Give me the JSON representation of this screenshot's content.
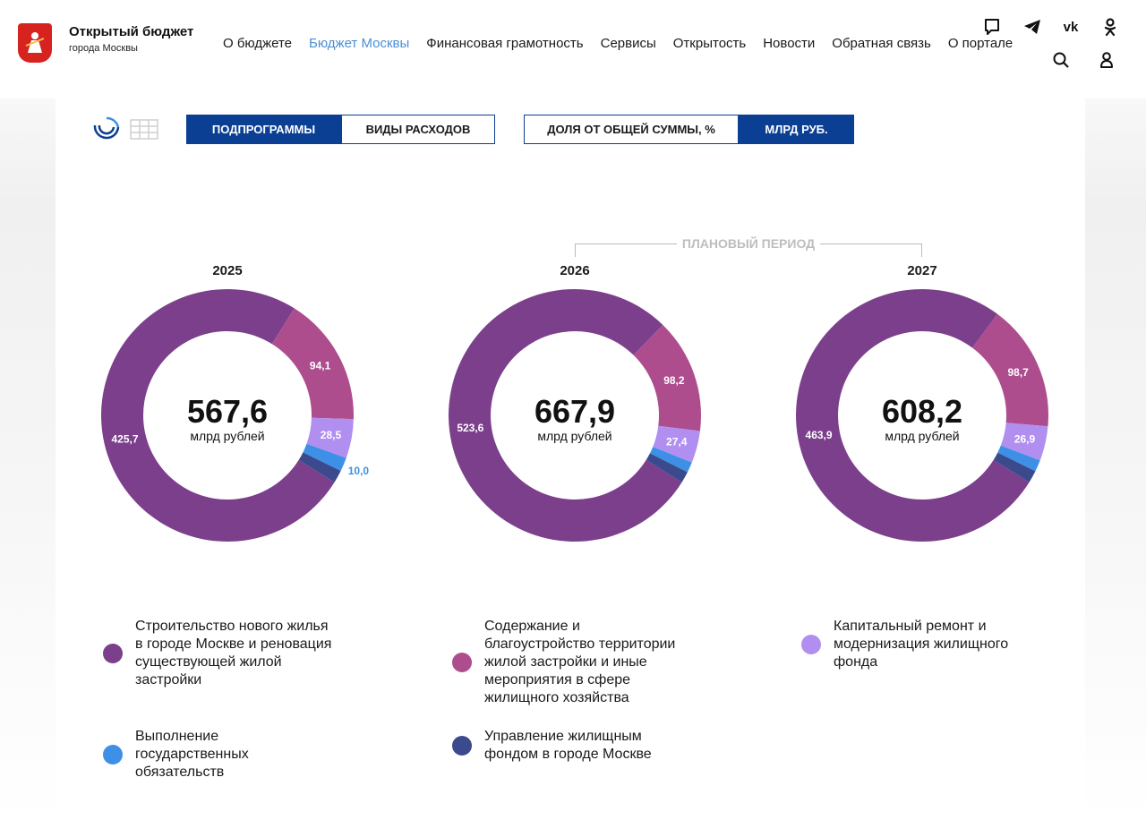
{
  "header": {
    "title": "Открытый бюджет",
    "subtitle": "города Москвы",
    "nav": [
      "О бюджете",
      "Бюджет Москвы",
      "Финансовая грамотность",
      "Сервисы",
      "Открытость",
      "Новости",
      "Обратная связь",
      "О портале"
    ],
    "active_nav": "Бюджет Москвы"
  },
  "controls": {
    "group_toggle": [
      "ПОДПРОГРАММЫ",
      "ВИДЫ РАСХОДОВ"
    ],
    "group_selected": "ПОДПРОГРАММЫ",
    "unit_toggle": [
      "ДОЛЯ ОТ ОБЩЕЙ СУММЫ, %",
      "МЛРД РУБ."
    ],
    "unit_selected": "МЛРД РУБ."
  },
  "planned_period_label": "ПЛАНОВЫЙ ПЕРИОД",
  "colors": {
    "construction": "#7b3f8c",
    "maintenance": "#ae4d8e",
    "repair": "#b18ff0",
    "obligations": "#3e90e6",
    "management": "#3b4a8c",
    "accent": "#0b3f94"
  },
  "chart_data": [
    {
      "type": "pie",
      "title": "2025",
      "total": "567,6",
      "unit": "млрд рублей",
      "slices": [
        {
          "key": "construction",
          "value": 425.7,
          "label": "425,7"
        },
        {
          "key": "maintenance",
          "value": 94.1,
          "label": "94,1"
        },
        {
          "key": "repair",
          "value": 28.5,
          "label": "28,5"
        },
        {
          "key": "obligations",
          "value": 10.0,
          "label": "10,0"
        },
        {
          "key": "management",
          "value": 9.3,
          "label": ""
        }
      ]
    },
    {
      "type": "pie",
      "title": "2026",
      "total": "667,9",
      "unit": "млрд рублей",
      "slices": [
        {
          "key": "construction",
          "value": 523.6,
          "label": "523,6"
        },
        {
          "key": "maintenance",
          "value": 98.2,
          "label": "98,2"
        },
        {
          "key": "repair",
          "value": 27.4,
          "label": "27,4"
        },
        {
          "key": "obligations",
          "value": 9.0,
          "label": ""
        },
        {
          "key": "management",
          "value": 9.7,
          "label": ""
        }
      ]
    },
    {
      "type": "pie",
      "title": "2027",
      "total": "608,2",
      "unit": "млрд рублей",
      "slices": [
        {
          "key": "construction",
          "value": 463.9,
          "label": "463,9"
        },
        {
          "key": "maintenance",
          "value": 98.7,
          "label": "98,7"
        },
        {
          "key": "repair",
          "value": 26.9,
          "label": "26,9"
        },
        {
          "key": "obligations",
          "value": 9.0,
          "label": ""
        },
        {
          "key": "management",
          "value": 9.7,
          "label": ""
        }
      ]
    }
  ],
  "legend": [
    {
      "key": "construction",
      "lines": [
        "Строительство нового жилья",
        "в городе Москве и реновация",
        "существующей жилой",
        "застройки"
      ]
    },
    {
      "key": "maintenance",
      "lines": [
        "Содержание и",
        "благоустройство территории",
        "жилой застройки и иные",
        "мероприятия в сфере",
        "жилищного хозяйства"
      ]
    },
    {
      "key": "repair",
      "lines": [
        "Капитальный ремонт и",
        "модернизация жилищного",
        "фонда"
      ]
    },
    {
      "key": "obligations",
      "lines": [
        "Выполнение",
        "государственных",
        "обязательств"
      ]
    },
    {
      "key": "management",
      "lines": [
        "Управление жилищным",
        "фондом в городе Москве"
      ]
    }
  ]
}
